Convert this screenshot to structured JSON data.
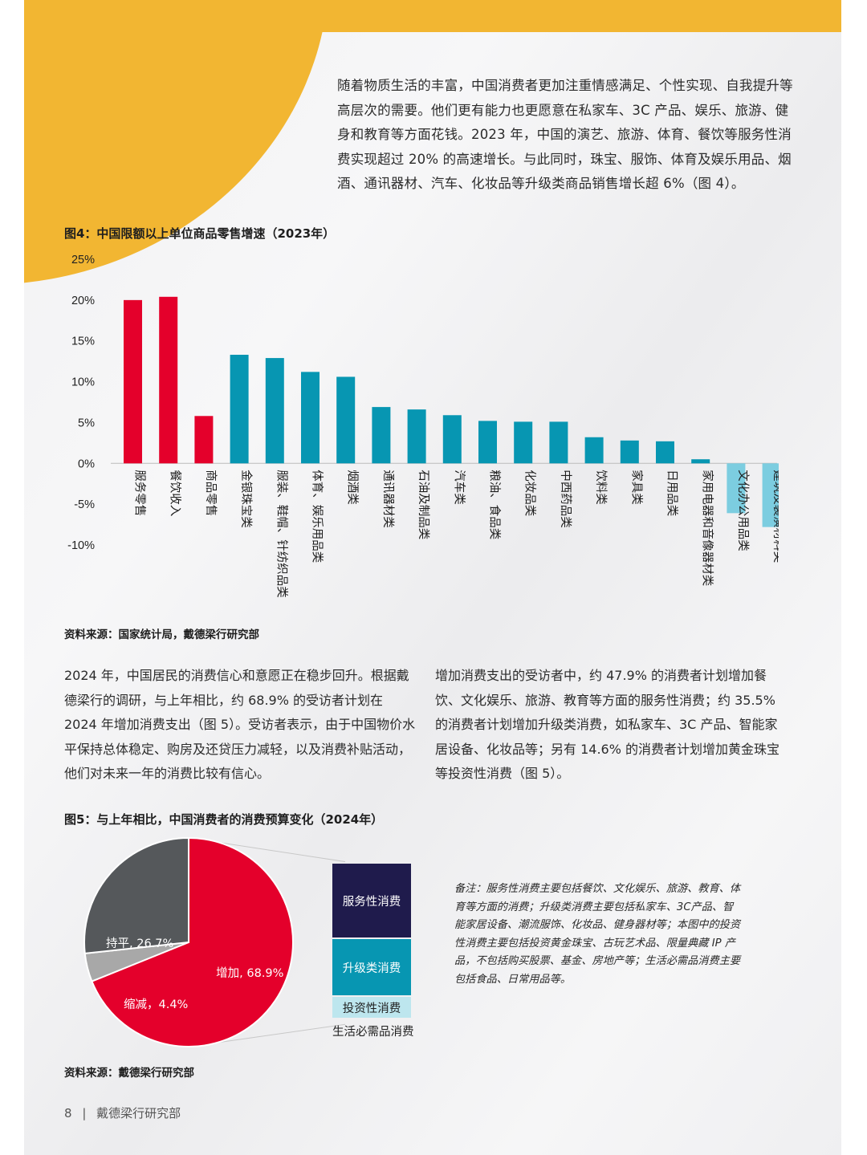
{
  "intro_text": "随着物质生活的丰富，中国消费者更加注重情感满足、个性实现、自我提升等高层次的需要。他们更有能力也更愿意在私家车、3C 产品、娱乐、旅游、健身和教育等方面花钱。2023 年，中国的演艺、旅游、体育、餐饮等服务性消费实现超过 20% 的高速增长。与此同时，珠宝、服饰、体育及娱乐用品、烟酒、通讯器材、汽车、化妆品等升级类商品销售增长超 6%（图 4）。",
  "figure4": {
    "title": "图4：中国限额以上单位商品零售增速（2023年）",
    "source": "资料来源：国家统计局，戴德梁行研究部"
  },
  "colors": {
    "red": "#e4002b",
    "teal": "#0796b2",
    "light_teal": "#7ccde0",
    "yellow": "#f2b632",
    "navy": "#1f1b4c",
    "dark_grey": "#55585b",
    "light_grey": "#a8a8a8",
    "pale_teal": "#bde6ee"
  },
  "chart_data": [
    {
      "type": "bar",
      "title": "图4：中国限额以上单位商品零售增速（2023年）",
      "yticks": [
        "25%",
        "20%",
        "15%",
        "10%",
        "5%",
        "0%",
        "-5%",
        "-10%"
      ],
      "ylim": [
        -10,
        25
      ],
      "grid": false,
      "categories": [
        "服务零售",
        "餐饮收入",
        "商品零售",
        "金银珠宝类",
        "服装、鞋帽、针纺织品类",
        "体育、娱乐用品类",
        "烟酒类",
        "通讯器材类",
        "石油及制品类",
        "汽车类",
        "粮油、食品类",
        "化妆品类",
        "中西药品类",
        "饮料类",
        "家具类",
        "日用品类",
        "家用电器和音像器材类",
        "文化办公用品类",
        "建筑及装潢材料类"
      ],
      "values": [
        20.0,
        20.4,
        5.8,
        13.3,
        12.9,
        11.2,
        10.6,
        6.9,
        6.6,
        5.9,
        5.2,
        5.1,
        5.1,
        3.2,
        2.8,
        2.7,
        0.5,
        -6.1,
        -7.8
      ],
      "bar_colors": [
        "red",
        "red",
        "red",
        "teal",
        "teal",
        "teal",
        "teal",
        "teal",
        "teal",
        "teal",
        "teal",
        "teal",
        "teal",
        "teal",
        "teal",
        "teal",
        "teal",
        "light_teal",
        "light_teal"
      ]
    },
    {
      "type": "pie",
      "title": "图5：与上年相比，中国消费者的消费预算变化（2024年）",
      "slices": [
        {
          "label": "增加, 68.9%",
          "value": 68.9,
          "color": "red"
        },
        {
          "label": "缩减，4.4%",
          "value": 4.4,
          "color": "light_grey"
        },
        {
          "label": "持平, 26.7%",
          "value": 26.7,
          "color": "dark_grey"
        }
      ],
      "breakdown_of_increase": [
        "服务性消费",
        "升级类消费",
        "投资性消费",
        "生活必需品消费"
      ],
      "breakdown_colors": [
        "navy",
        "teal",
        "pale_teal",
        "none"
      ]
    }
  ],
  "para_left": "2024 年，中国居民的消费信心和意愿正在稳步回升。根据戴德梁行的调研，与上年相比，约 68.9% 的受访者计划在 2024 年增加消费支出（图 5）。受访者表示，由于中国物价水平保持总体稳定、购房及还贷压力减轻，以及消费补贴活动，他们对未来一年的消费比较有信心。",
  "para_right": "增加消费支出的受访者中，约 47.9% 的消费者计划增加餐饮、文化娱乐、旅游、教育等方面的服务性消费；约 35.5% 的消费者计划增加升级类消费，如私家车、3C 产品、智能家居设备、化妆品等；另有 14.6% 的消费者计划增加黄金珠宝等投资性消费（图 5）。",
  "figure5": {
    "title": "图5：与上年相比，中国消费者的消费预算变化（2024年）",
    "legend": [
      "服务性消费",
      "升级类消费",
      "投资性消费",
      "生活必需品消费"
    ],
    "source": "资料来源：戴德梁行研究部",
    "note": "备注：服务性消费主要包括餐饮、文化娱乐、旅游、教育、体育等方面的消费；升级类消费主要包括私家车、3C产品、智能家居设备、潮流服饰、化妆品、健身器材等；本图中的投资性消费主要包括投资黄金珠宝、古玩艺术品、限量典藏 IP 产品，不包括购买股票、基金、房地产等；生活必需品消费主要包括食品、日常用品等。"
  },
  "footer": {
    "page_number": "8",
    "separator": "|",
    "company": "戴德梁行研究部"
  }
}
